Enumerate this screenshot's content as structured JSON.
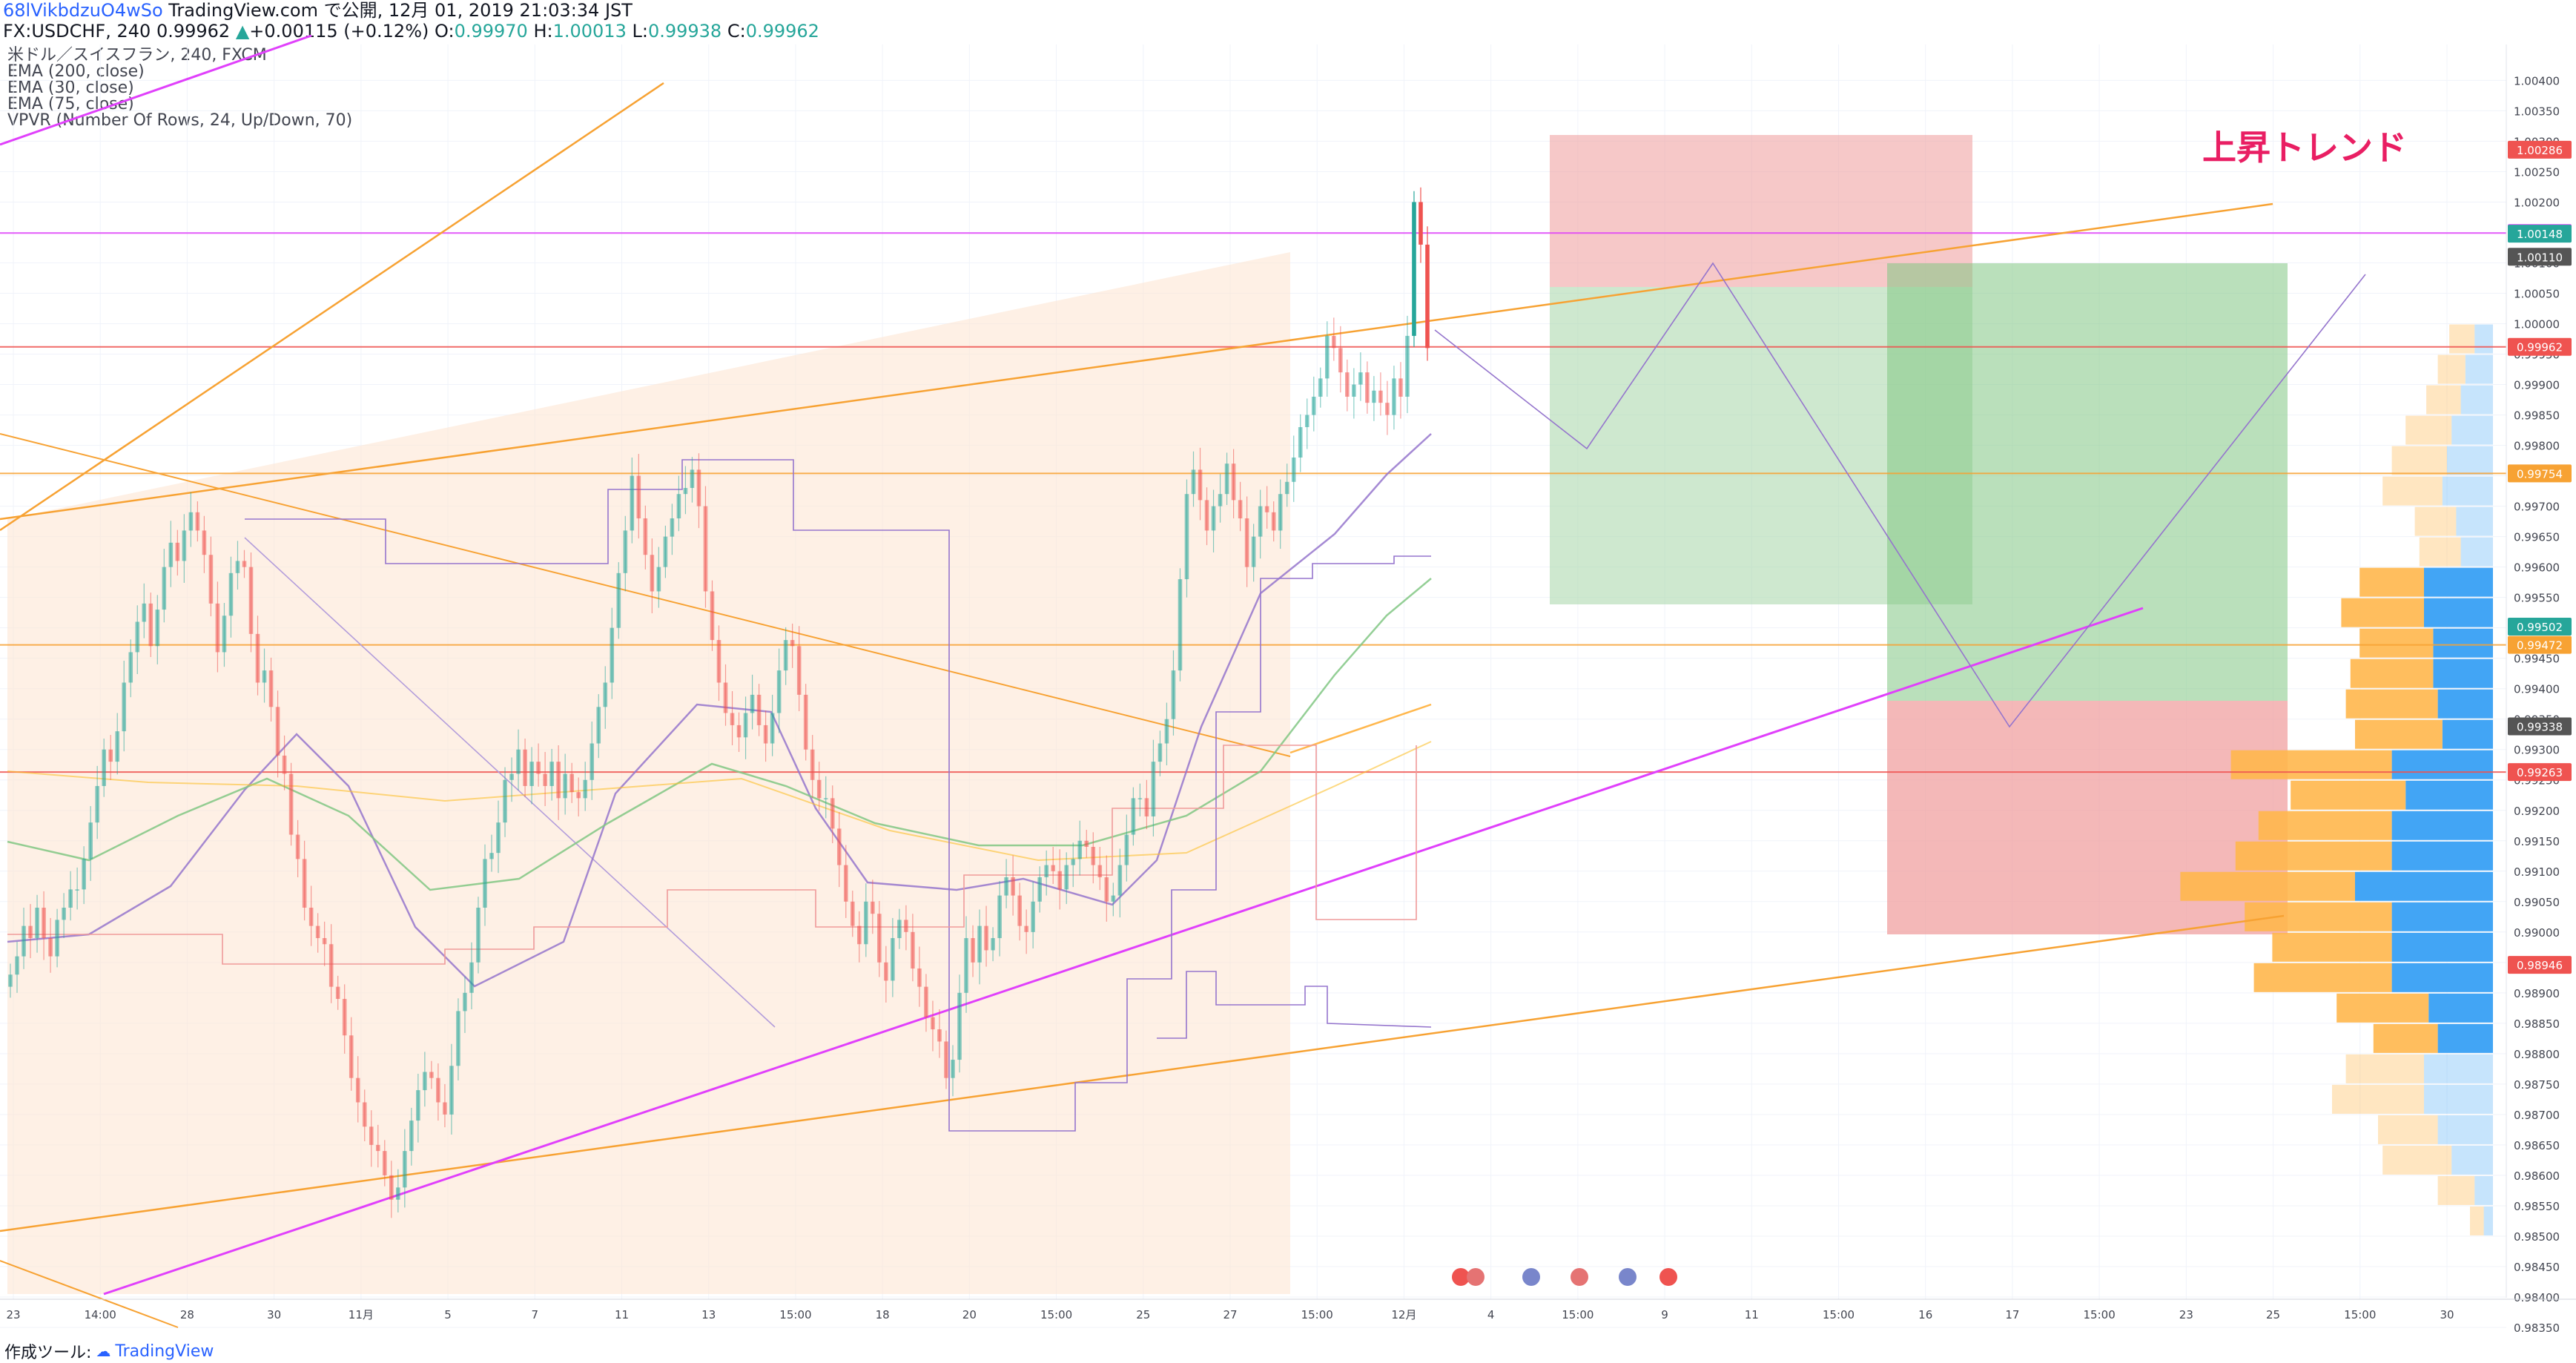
{
  "header": {
    "line1": {
      "user": "68lVikbdzuO4wSo",
      "text": " TradingView.com で公開, 12月 01, 2019 21:03:34 JST"
    },
    "line2": {
      "symbol": "FX:USDCHF, 240",
      "last": "0.99962",
      "change": "+0.00115 (+0.12%)",
      "o_label": "O:",
      "o": "0.99970",
      "h_label": "H:",
      "h": "1.00013",
      "l_label": "L:",
      "l": "0.99938",
      "c_label": "C:",
      "c": "0.99962"
    }
  },
  "legend": [
    "米ドル／スイスフラン, 240, FXCM",
    "EMA (200, close)",
    "EMA (30, close)",
    "EMA (75, close)",
    "VPVR (Number Of Rows, 24, Up/Down, 70)"
  ],
  "annotation": {
    "trend_label": "上昇トレンド"
  },
  "footer": {
    "made_with": "作成ツール:",
    "brand": "TradingView"
  },
  "colors": {
    "up": "#26a69a",
    "down": "#ef5350",
    "magenta": "#e040fb",
    "orange": "#f7a233",
    "ema200": "#fbc02d",
    "ema30": "#9575cd",
    "ema75": "#81c784",
    "vol_up": "#42a5f5",
    "vol_down": "#ffb74d"
  },
  "chart_data": {
    "type": "candlestick",
    "symbol": "FX:USDCHF",
    "timeframe": "240",
    "ylim": [
      0.9835,
      1.0042
    ],
    "y_ticks": [
      "1.00400",
      "1.00350",
      "1.00300",
      "1.00250",
      "1.00200",
      "1.00150",
      "1.00100",
      "1.00050",
      "1.00000",
      "0.99950",
      "0.99900",
      "0.99850",
      "0.99800",
      "0.99750",
      "0.99700",
      "0.99650",
      "0.99600",
      "0.99550",
      "0.99500",
      "0.99450",
      "0.99400",
      "0.99350",
      "0.99300",
      "0.99250",
      "0.99200",
      "0.99150",
      "0.99100",
      "0.99050",
      "0.99000",
      "0.98950",
      "0.98900",
      "0.98850",
      "0.98800",
      "0.98750",
      "0.98700",
      "0.98650",
      "0.98600",
      "0.98550",
      "0.98500",
      "0.98450",
      "0.98400",
      "0.98350"
    ],
    "x_ticks": [
      "23",
      "14:00",
      "28",
      "30",
      "11月",
      "5",
      "7",
      "11",
      "13",
      "15:00",
      "18",
      "20",
      "15:00",
      "25",
      "27",
      "15:00",
      "12月",
      "4",
      "15:00",
      "9",
      "11",
      "15:00",
      "16",
      "17",
      "15:00",
      "23",
      "25",
      "15:00",
      "30"
    ],
    "price_tags": [
      {
        "value": "1.00286",
        "color": "#ef5350"
      },
      {
        "value": "1.00149",
        "color": "#e040fb"
      },
      {
        "value": "1.00148",
        "color": "#26a69a"
      },
      {
        "value": "1.00110",
        "color": "#555555"
      },
      {
        "value": "0.99962",
        "color": "#ef5350"
      },
      {
        "value": "0.99754",
        "color": "#f7a233"
      },
      {
        "value": "0.99502",
        "color": "#26a69a"
      },
      {
        "value": "0.99472",
        "color": "#f7a233"
      },
      {
        "value": "0.99338",
        "color": "#555555"
      },
      {
        "value": "0.99263",
        "color": "#ef5350"
      },
      {
        "value": "0.98946",
        "color": "#ef5350"
      }
    ],
    "horizontal_levels": [
      {
        "value": 1.00149,
        "color": "#e040fb"
      },
      {
        "value": 0.99754,
        "color": "#f7a233"
      },
      {
        "value": 0.99472,
        "color": "#f7a233"
      },
      {
        "value": 0.99263,
        "color": "#ef5350"
      },
      {
        "value": 0.99962,
        "color": "#ef5350"
      }
    ],
    "candles_close": [
      0.9893,
      0.9896,
      0.9901,
      0.9899,
      0.9904,
      0.9899,
      0.9896,
      0.9902,
      0.9904,
      0.9907,
      0.9907,
      0.9912,
      0.9918,
      0.9924,
      0.993,
      0.9928,
      0.9933,
      0.9941,
      0.9946,
      0.9951,
      0.9954,
      0.9947,
      0.9953,
      0.996,
      0.9964,
      0.9961,
      0.9966,
      0.9969,
      0.9966,
      0.9962,
      0.9954,
      0.9946,
      0.9952,
      0.9959,
      0.9961,
      0.996,
      0.9949,
      0.9941,
      0.9943,
      0.9937,
      0.9929,
      0.9926,
      0.9916,
      0.9912,
      0.9904,
      0.9901,
      0.9899,
      0.9898,
      0.9891,
      0.9889,
      0.9883,
      0.9876,
      0.9872,
      0.9868,
      0.9865,
      0.9864,
      0.986,
      0.9856,
      0.9858,
      0.9864,
      0.9869,
      0.9874,
      0.9877,
      0.9876,
      0.9872,
      0.987,
      0.9878,
      0.9887,
      0.989,
      0.9895,
      0.9904,
      0.9912,
      0.9913,
      0.9918,
      0.9925,
      0.9926,
      0.993,
      0.9924,
      0.9928,
      0.9926,
      0.9924,
      0.9928,
      0.9922,
      0.9926,
      0.9923,
      0.9922,
      0.9925,
      0.9931,
      0.9937,
      0.9941,
      0.995,
      0.9959,
      0.9966,
      0.9975,
      0.9968,
      0.9962,
      0.9956,
      0.996,
      0.9965,
      0.9968,
      0.9972,
      0.9973,
      0.9976,
      0.997,
      0.9956,
      0.9948,
      0.9941,
      0.9936,
      0.9934,
      0.9932,
      0.9936,
      0.9939,
      0.9934,
      0.9931,
      0.9936,
      0.9943,
      0.9948,
      0.9947,
      0.9939,
      0.993,
      0.9925,
      0.9922,
      0.9922,
      0.9917,
      0.9911,
      0.9905,
      0.9901,
      0.9898,
      0.9905,
      0.9903,
      0.9895,
      0.9892,
      0.9899,
      0.9902,
      0.99,
      0.9894,
      0.9891,
      0.9886,
      0.9884,
      0.9882,
      0.9876,
      0.9879,
      0.989,
      0.9899,
      0.9895,
      0.9901,
      0.9897,
      0.9899,
      0.9906,
      0.9909,
      0.9906,
      0.9901,
      0.99,
      0.9905,
      0.9909,
      0.9911,
      0.991,
      0.9907,
      0.9911,
      0.9912,
      0.9915,
      0.9914,
      0.9911,
      0.9909,
      0.9905,
      0.9906,
      0.9911,
      0.9916,
      0.9922,
      0.9922,
      0.9919,
      0.9928,
      0.9931,
      0.9935,
      0.9943,
      0.9958,
      0.9972,
      0.9976,
      0.9971,
      0.9966,
      0.997,
      0.9972,
      0.9977,
      0.9971,
      0.9968,
      0.996,
      0.9965,
      0.997,
      0.9969,
      0.9966,
      0.9972,
      0.9974,
      0.9978,
      0.9983,
      0.9985,
      0.9988,
      0.9991,
      0.9998,
      0.9996,
      0.9992,
      0.9988,
      0.999,
      0.9992,
      0.9987,
      0.9989,
      0.9987,
      0.9985,
      0.9991,
      0.9988,
      0.9998,
      1.002,
      1.0013,
      0.9996
    ],
    "trend_label": "上昇トレンド"
  }
}
